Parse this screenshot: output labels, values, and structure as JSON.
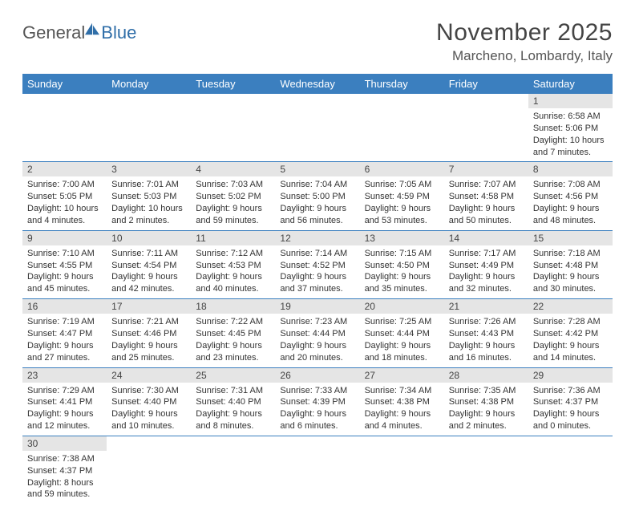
{
  "logo": {
    "general": "General",
    "blue": "Blue",
    "sail_color": "#2f6ea8"
  },
  "title": "November 2025",
  "location": "Marcheno, Lombardy, Italy",
  "colors": {
    "header_bg": "#3b7fbf",
    "header_text": "#ffffff",
    "daynum_bg": "#e5e5e5",
    "cell_border": "#3b7fbf",
    "body_text": "#333333"
  },
  "weekdays": [
    "Sunday",
    "Monday",
    "Tuesday",
    "Wednesday",
    "Thursday",
    "Friday",
    "Saturday"
  ],
  "first_day_index": 6,
  "days": [
    {
      "n": 1,
      "sunrise": "6:58 AM",
      "sunset": "5:06 PM",
      "daylight": "10 hours and 7 minutes."
    },
    {
      "n": 2,
      "sunrise": "7:00 AM",
      "sunset": "5:05 PM",
      "daylight": "10 hours and 4 minutes."
    },
    {
      "n": 3,
      "sunrise": "7:01 AM",
      "sunset": "5:03 PM",
      "daylight": "10 hours and 2 minutes."
    },
    {
      "n": 4,
      "sunrise": "7:03 AM",
      "sunset": "5:02 PM",
      "daylight": "9 hours and 59 minutes."
    },
    {
      "n": 5,
      "sunrise": "7:04 AM",
      "sunset": "5:00 PM",
      "daylight": "9 hours and 56 minutes."
    },
    {
      "n": 6,
      "sunrise": "7:05 AM",
      "sunset": "4:59 PM",
      "daylight": "9 hours and 53 minutes."
    },
    {
      "n": 7,
      "sunrise": "7:07 AM",
      "sunset": "4:58 PM",
      "daylight": "9 hours and 50 minutes."
    },
    {
      "n": 8,
      "sunrise": "7:08 AM",
      "sunset": "4:56 PM",
      "daylight": "9 hours and 48 minutes."
    },
    {
      "n": 9,
      "sunrise": "7:10 AM",
      "sunset": "4:55 PM",
      "daylight": "9 hours and 45 minutes."
    },
    {
      "n": 10,
      "sunrise": "7:11 AM",
      "sunset": "4:54 PM",
      "daylight": "9 hours and 42 minutes."
    },
    {
      "n": 11,
      "sunrise": "7:12 AM",
      "sunset": "4:53 PM",
      "daylight": "9 hours and 40 minutes."
    },
    {
      "n": 12,
      "sunrise": "7:14 AM",
      "sunset": "4:52 PM",
      "daylight": "9 hours and 37 minutes."
    },
    {
      "n": 13,
      "sunrise": "7:15 AM",
      "sunset": "4:50 PM",
      "daylight": "9 hours and 35 minutes."
    },
    {
      "n": 14,
      "sunrise": "7:17 AM",
      "sunset": "4:49 PM",
      "daylight": "9 hours and 32 minutes."
    },
    {
      "n": 15,
      "sunrise": "7:18 AM",
      "sunset": "4:48 PM",
      "daylight": "9 hours and 30 minutes."
    },
    {
      "n": 16,
      "sunrise": "7:19 AM",
      "sunset": "4:47 PM",
      "daylight": "9 hours and 27 minutes."
    },
    {
      "n": 17,
      "sunrise": "7:21 AM",
      "sunset": "4:46 PM",
      "daylight": "9 hours and 25 minutes."
    },
    {
      "n": 18,
      "sunrise": "7:22 AM",
      "sunset": "4:45 PM",
      "daylight": "9 hours and 23 minutes."
    },
    {
      "n": 19,
      "sunrise": "7:23 AM",
      "sunset": "4:44 PM",
      "daylight": "9 hours and 20 minutes."
    },
    {
      "n": 20,
      "sunrise": "7:25 AM",
      "sunset": "4:44 PM",
      "daylight": "9 hours and 18 minutes."
    },
    {
      "n": 21,
      "sunrise": "7:26 AM",
      "sunset": "4:43 PM",
      "daylight": "9 hours and 16 minutes."
    },
    {
      "n": 22,
      "sunrise": "7:28 AM",
      "sunset": "4:42 PM",
      "daylight": "9 hours and 14 minutes."
    },
    {
      "n": 23,
      "sunrise": "7:29 AM",
      "sunset": "4:41 PM",
      "daylight": "9 hours and 12 minutes."
    },
    {
      "n": 24,
      "sunrise": "7:30 AM",
      "sunset": "4:40 PM",
      "daylight": "9 hours and 10 minutes."
    },
    {
      "n": 25,
      "sunrise": "7:31 AM",
      "sunset": "4:40 PM",
      "daylight": "9 hours and 8 minutes."
    },
    {
      "n": 26,
      "sunrise": "7:33 AM",
      "sunset": "4:39 PM",
      "daylight": "9 hours and 6 minutes."
    },
    {
      "n": 27,
      "sunrise": "7:34 AM",
      "sunset": "4:38 PM",
      "daylight": "9 hours and 4 minutes."
    },
    {
      "n": 28,
      "sunrise": "7:35 AM",
      "sunset": "4:38 PM",
      "daylight": "9 hours and 2 minutes."
    },
    {
      "n": 29,
      "sunrise": "7:36 AM",
      "sunset": "4:37 PM",
      "daylight": "9 hours and 0 minutes."
    },
    {
      "n": 30,
      "sunrise": "7:38 AM",
      "sunset": "4:37 PM",
      "daylight": "8 hours and 59 minutes."
    }
  ],
  "labels": {
    "sunrise": "Sunrise:",
    "sunset": "Sunset:",
    "daylight": "Daylight:"
  }
}
